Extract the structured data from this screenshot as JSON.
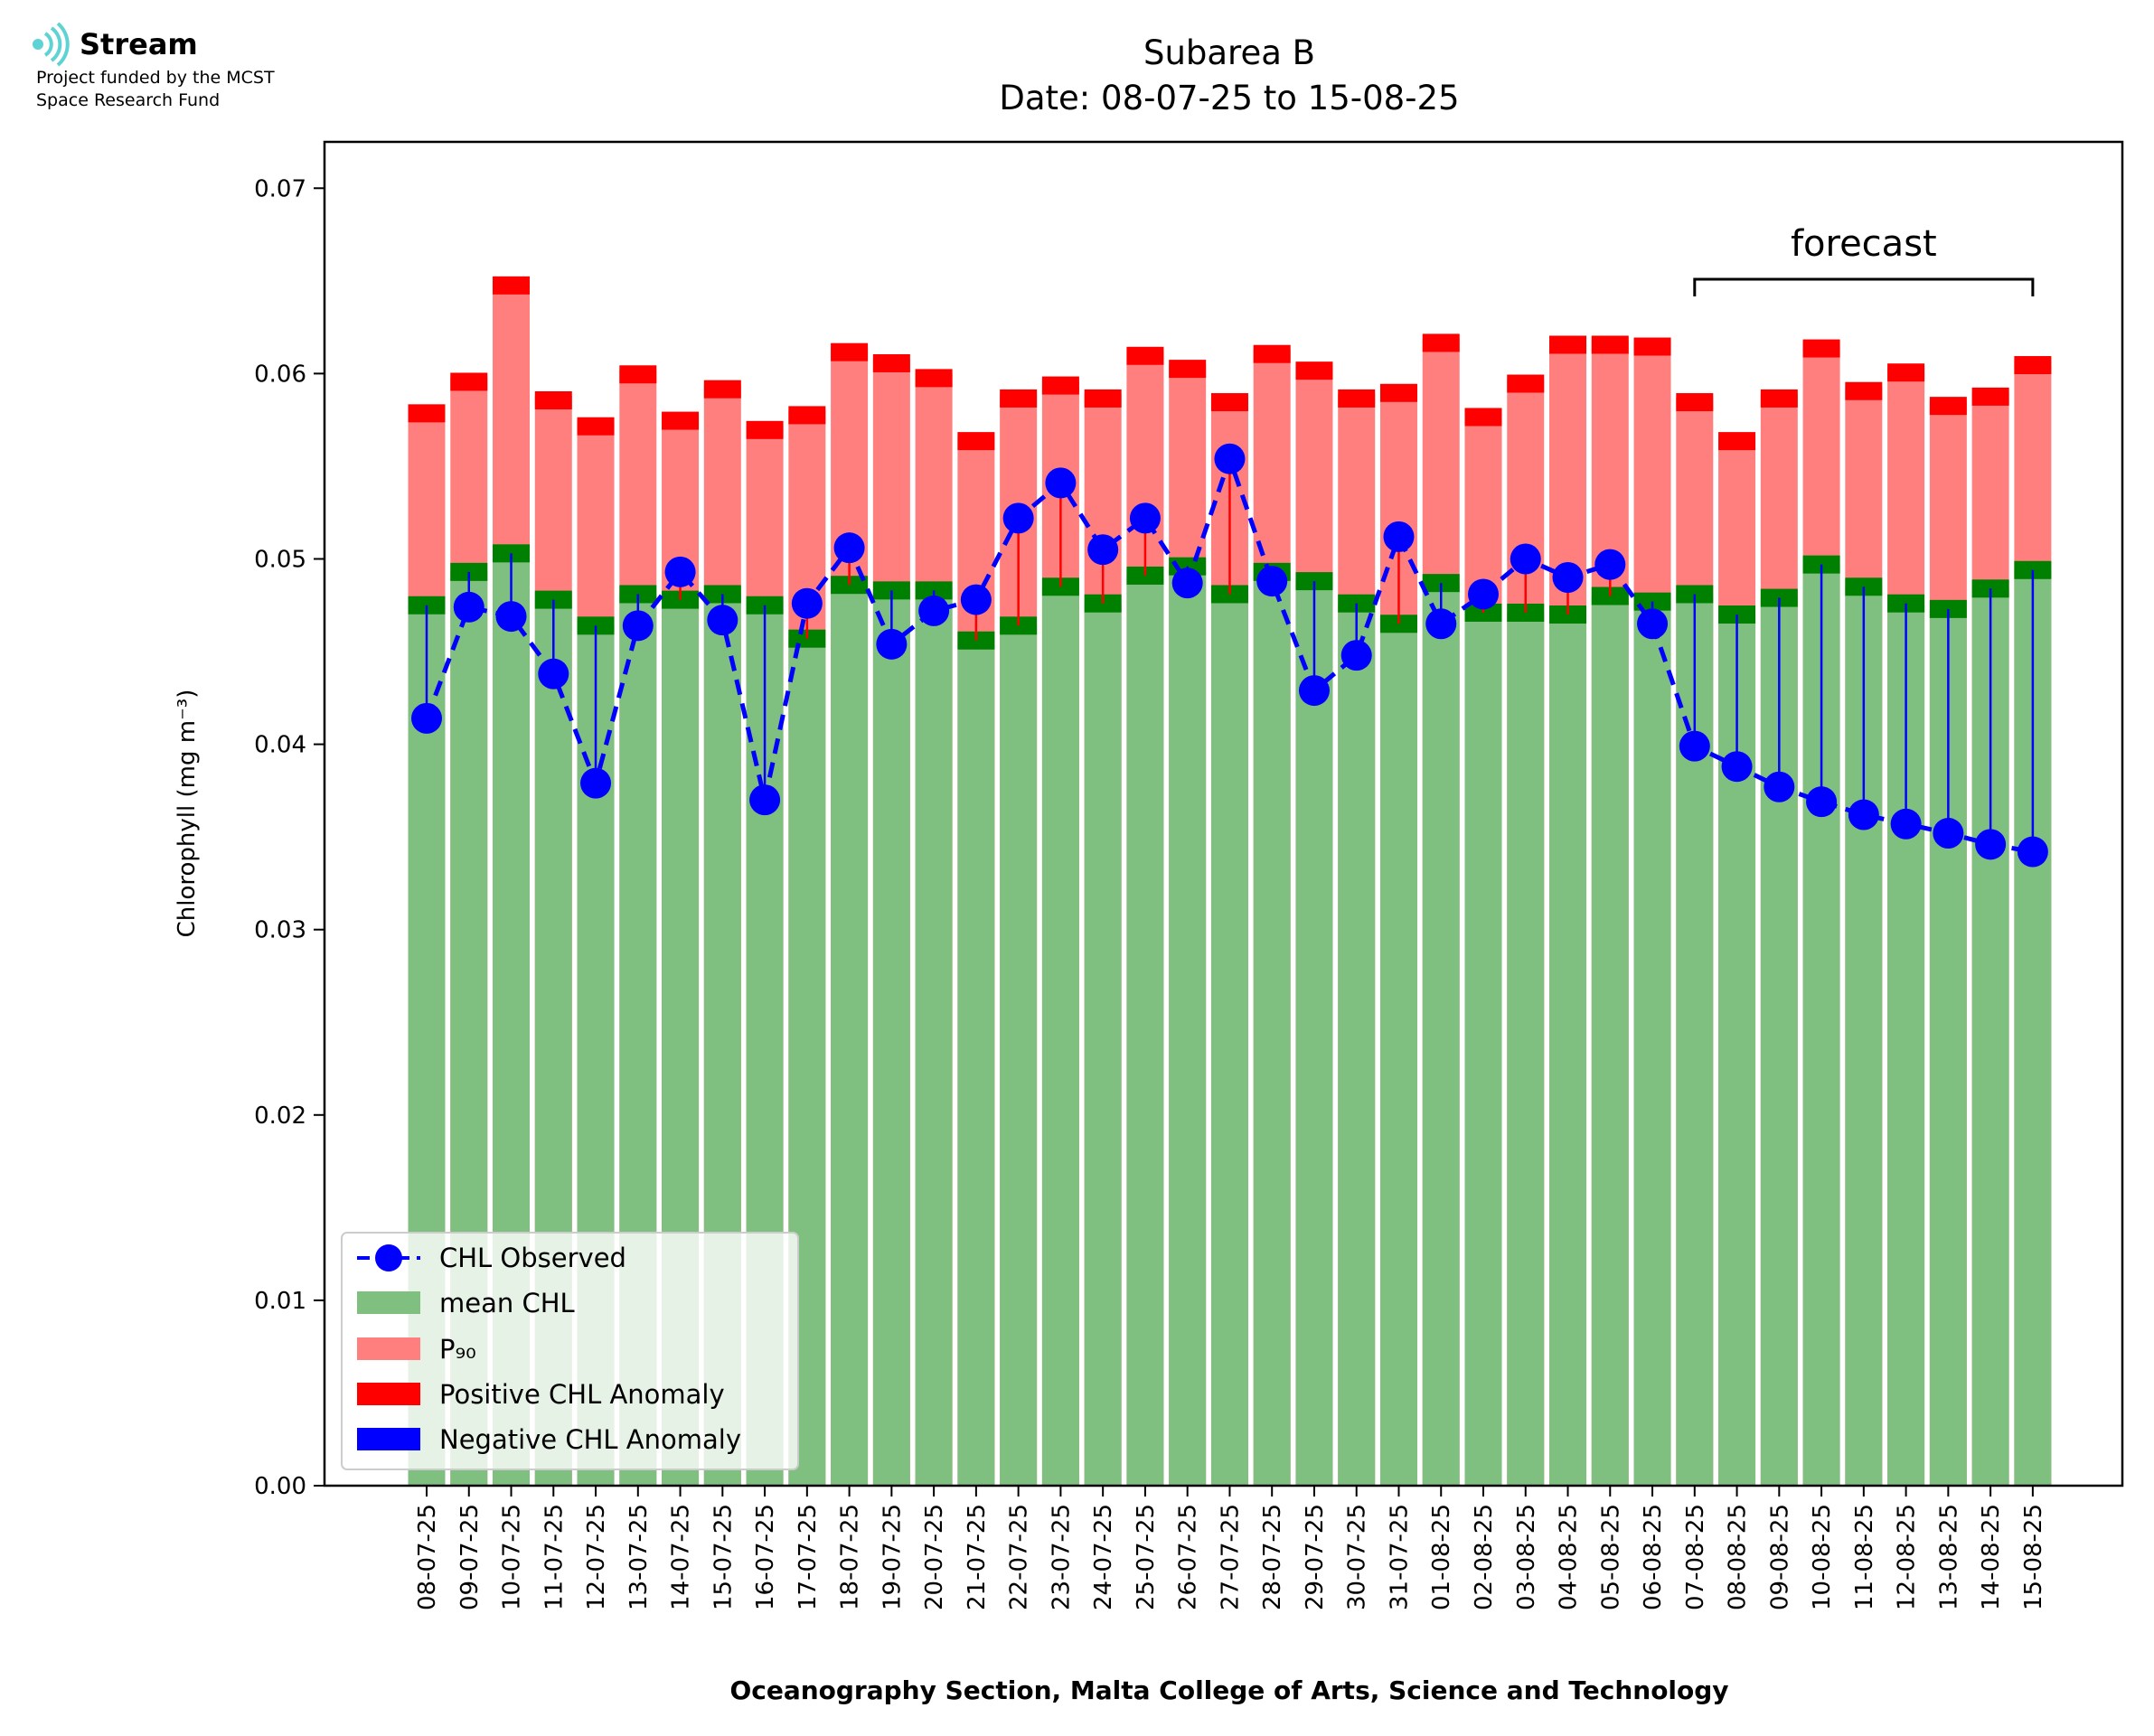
{
  "logo": {
    "name": "Stream",
    "line1": "Project funded by the MCST",
    "line2": "Space Research Fund"
  },
  "chart_data": {
    "type": "bar",
    "title": "Subarea B",
    "subtitle": "Date: 08-07-25 to 15-08-25",
    "xlabel": "Oceanography Section, Malta College of Arts, Science and Technology",
    "ylabel": "Chlorophyll (mg m⁻³)",
    "ylim": [
      0,
      0.0725
    ],
    "yticks": [
      0.0,
      0.01,
      0.02,
      0.03,
      0.04,
      0.05,
      0.06,
      0.07
    ],
    "ytick_labels": [
      "0.00",
      "0.01",
      "0.02",
      "0.03",
      "0.04",
      "0.05",
      "0.06",
      "0.07"
    ],
    "legend_position": "lower-left",
    "annotation": "forecast",
    "forecast_span": [
      "07-08-25",
      "15-08-25"
    ],
    "categories": [
      "08-07-25",
      "09-07-25",
      "10-07-25",
      "11-07-25",
      "12-07-25",
      "13-07-25",
      "14-07-25",
      "15-07-25",
      "16-07-25",
      "17-07-25",
      "18-07-25",
      "19-07-25",
      "20-07-25",
      "21-07-25",
      "22-07-25",
      "23-07-25",
      "24-07-25",
      "25-07-25",
      "26-07-25",
      "27-07-25",
      "28-07-25",
      "29-07-25",
      "30-07-25",
      "31-07-25",
      "01-08-25",
      "02-08-25",
      "03-08-25",
      "04-08-25",
      "05-08-25",
      "06-08-25",
      "07-08-25",
      "08-08-25",
      "09-08-25",
      "10-08-25",
      "11-08-25",
      "12-08-25",
      "13-08-25",
      "14-08-25",
      "15-08-25"
    ],
    "series": [
      {
        "name": "CHL Observed",
        "color": "#0000ff",
        "style": "dashed line with markers",
        "values": [
          0.0414,
          0.0474,
          0.0469,
          0.0438,
          0.0379,
          0.0464,
          0.0493,
          0.0467,
          0.037,
          0.0476,
          0.0506,
          0.0454,
          0.0472,
          0.0478,
          0.0522,
          0.0541,
          0.0505,
          0.0522,
          0.0487,
          0.0554,
          0.0488,
          0.0429,
          0.0448,
          0.0512,
          0.0465,
          0.0481,
          0.05,
          0.049,
          0.0497,
          0.0465,
          0.0399,
          0.0388,
          0.0377,
          0.0369,
          0.0362,
          0.0357,
          0.0352,
          0.0346,
          0.0342
        ]
      },
      {
        "name": "mean CHL",
        "color": "#7fbf7f",
        "values": [
          0.0475,
          0.0493,
          0.0503,
          0.0478,
          0.0464,
          0.0481,
          0.0478,
          0.0481,
          0.0475,
          0.0457,
          0.0486,
          0.0483,
          0.0483,
          0.0456,
          0.0464,
          0.0485,
          0.0476,
          0.0491,
          0.0496,
          0.0481,
          0.0493,
          0.0488,
          0.0476,
          0.0465,
          0.0487,
          0.0471,
          0.0471,
          0.047,
          0.048,
          0.0477,
          0.0481,
          0.047,
          0.0479,
          0.0497,
          0.0485,
          0.0476,
          0.0473,
          0.0484,
          0.0494
        ]
      },
      {
        "name": "P₉₀",
        "color": "#ff7f7f",
        "values": [
          0.0581,
          0.0598,
          0.065,
          0.0588,
          0.0574,
          0.0602,
          0.0577,
          0.0594,
          0.0572,
          0.058,
          0.0614,
          0.0608,
          0.06,
          0.0566,
          0.0589,
          0.0596,
          0.0589,
          0.0612,
          0.0605,
          0.0587,
          0.0613,
          0.0604,
          0.0589,
          0.0592,
          0.0619,
          0.0579,
          0.0597,
          0.0618,
          0.0618,
          0.0617,
          0.0587,
          0.0566,
          0.0589,
          0.0616,
          0.0593,
          0.0603,
          0.0585,
          0.059,
          0.0607
        ]
      },
      {
        "name": "Positive CHL Anomaly",
        "color": "#ff0000"
      },
      {
        "name": "Negative CHL Anomaly",
        "color": "#0000ff"
      }
    ],
    "colors": {
      "mean_band": "#008000",
      "p90_band": "#ff0000"
    }
  }
}
